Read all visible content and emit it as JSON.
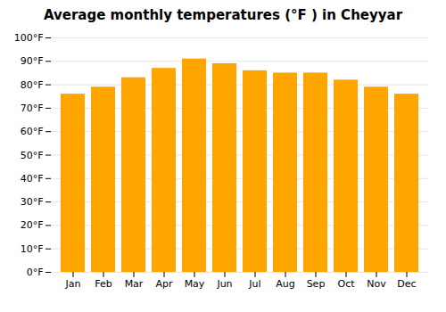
{
  "chart_data": {
    "type": "bar",
    "title": "Average monthly temperatures (°F ) in Cheyyar",
    "categories": [
      "Jan",
      "Feb",
      "Mar",
      "Apr",
      "May",
      "Jun",
      "Jul",
      "Aug",
      "Sep",
      "Oct",
      "Nov",
      "Dec"
    ],
    "values": [
      76,
      79,
      83,
      87,
      91,
      89,
      86,
      85,
      85,
      82,
      79,
      76
    ],
    "color": "#FFA500",
    "ylim": [
      0,
      100
    ],
    "yticks": [
      {
        "value": 0,
        "label": "0°F"
      },
      {
        "value": 10,
        "label": "10°F"
      },
      {
        "value": 20,
        "label": "20°F"
      },
      {
        "value": 30,
        "label": "30°F"
      },
      {
        "value": 40,
        "label": "40°F"
      },
      {
        "value": 50,
        "label": "50°F"
      },
      {
        "value": 60,
        "label": "60°F"
      },
      {
        "value": 70,
        "label": "70°F"
      },
      {
        "value": 80,
        "label": "80°F"
      },
      {
        "value": 90,
        "label": "90°F"
      },
      {
        "value": 100,
        "label": "100°F"
      }
    ],
    "grid": true
  }
}
